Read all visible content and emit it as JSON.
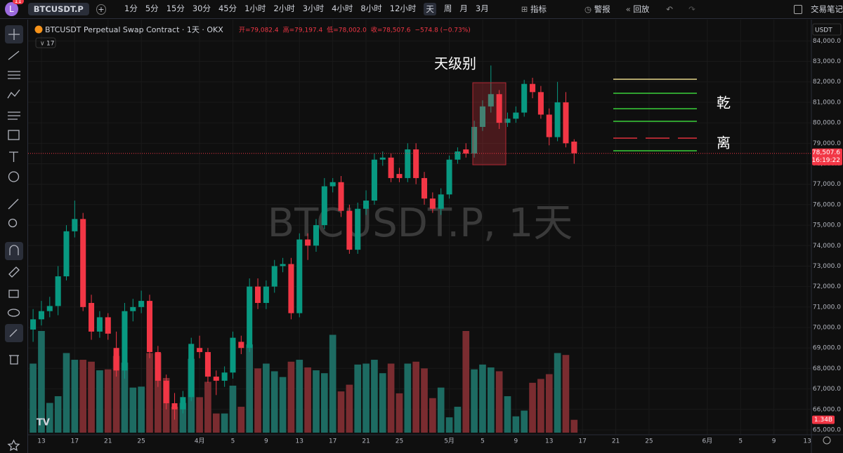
{
  "toolbar": {
    "avatar": "L",
    "badge": "11",
    "symbol": "BTCUSDT.P",
    "intervals": [
      "1分",
      "5分",
      "15分",
      "30分",
      "45分",
      "1小时",
      "2小时",
      "3小时",
      "4小时",
      "8小时",
      "12小时",
      "天",
      "周",
      "月",
      "3月"
    ],
    "indicators": "指标",
    "alert": "警报",
    "replay": "回放",
    "notes": "交易笔记"
  },
  "chart_data": {
    "type": "candlestick",
    "title": "BTCUSDT Perpetual Swap Contract · 1天 · OKX",
    "legend_values": [
      "开=79,082.4",
      "高=79,197.4",
      "低=78,002.0",
      "收=78,507.6",
      "−574.8 (−0.73%)"
    ],
    "indicator_count": "17",
    "watermark": "BTCUSDT.P, 1天",
    "annotation": "天级别",
    "labels": [
      "乾",
      "离"
    ],
    "currency": "USDT",
    "colors": {
      "up": "#089981",
      "down": "#f23645",
      "volume_up": "#1d6b62",
      "volume_down": "#7a2c30"
    },
    "open": [
      69900,
      70400,
      70800,
      71050,
      72500,
      74700,
      75300,
      71200,
      69800,
      70500,
      69000,
      67900,
      70800,
      71000,
      71300,
      68800,
      67400,
      66300,
      66000,
      66600,
      69000,
      68800,
      67600,
      67400,
      67800,
      69300,
      69000,
      72000,
      71200,
      72000,
      73000,
      73100,
      70700,
      74300,
      74000,
      75000,
      76900,
      77100,
      75700,
      73800,
      75800,
      76200,
      78200,
      78300,
      77500,
      77300,
      78700,
      77300,
      76300,
      75800,
      76500,
      78200,
      78700,
      78500,
      79800,
      80800,
      81400,
      80000,
      80200,
      80500,
      81900,
      81500,
      80400,
      79300,
      81000,
      79082.4
    ],
    "high": [
      70900,
      71300,
      71500,
      73000,
      75000,
      76200,
      75600,
      71600,
      70800,
      70700,
      69800,
      71200,
      71400,
      71800,
      71600,
      69100,
      67700,
      66800,
      66900,
      69500,
      69600,
      69000,
      67900,
      68100,
      69800,
      69600,
      72400,
      72400,
      72300,
      73300,
      73400,
      73400,
      74600,
      74600,
      75300,
      77300,
      77300,
      77400,
      76000,
      76100,
      76700,
      78500,
      78600,
      78500,
      77800,
      79000,
      79000,
      77600,
      76600,
      76800,
      78400,
      78800,
      79000,
      80100,
      81100,
      82800,
      81600,
      80500,
      80800,
      82100,
      82200,
      81800,
      80700,
      82000,
      81500,
      79197.4
    ],
    "low": [
      69300,
      70100,
      70500,
      70600,
      72300,
      74400,
      70800,
      69400,
      69500,
      69400,
      67600,
      67500,
      70300,
      70700,
      68500,
      67100,
      66000,
      65500,
      65800,
      66400,
      68500,
      67300,
      66700,
      67100,
      67500,
      68700,
      68800,
      70900,
      70900,
      71700,
      72700,
      70400,
      70500,
      73300,
      73700,
      74800,
      76600,
      75400,
      73600,
      73600,
      75500,
      76000,
      77900,
      77100,
      77100,
      77100,
      77000,
      76000,
      75600,
      75500,
      76300,
      78000,
      78300,
      78300,
      79600,
      80500,
      79700,
      79800,
      80000,
      80300,
      81200,
      80200,
      78900,
      79100,
      78800,
      78002.0
    ],
    "close": [
      70400,
      70800,
      71050,
      72500,
      74700,
      75300,
      71000,
      69800,
      70500,
      69700,
      67900,
      70800,
      71000,
      71300,
      68800,
      67400,
      66300,
      66000,
      66600,
      69200,
      68800,
      67600,
      67400,
      67800,
      69500,
      69000,
      72000,
      71200,
      72000,
      73000,
      73100,
      70700,
      74300,
      74000,
      75000,
      76900,
      77100,
      75700,
      73800,
      75800,
      76200,
      78200,
      78300,
      77300,
      77300,
      78700,
      77300,
      76300,
      75800,
      76500,
      78200,
      78600,
      78500,
      79800,
      80800,
      81400,
      80000,
      80200,
      80500,
      81900,
      81500,
      80400,
      79300,
      81000,
      79000,
      78507.6
    ],
    "volume": {
      "values": [
        7.2,
        10.6,
        3.1,
        3.8,
        8.3,
        7.6,
        7.6,
        7.4,
        6.5,
        6.6,
        8.0,
        7.3,
        4.7,
        4.8,
        8.3,
        8.3,
        5.7,
        2.7,
        3.1,
        7.7,
        3.7,
        5.3,
        2.0,
        2.0,
        4.9,
        2.7,
        9.2,
        6.7,
        7.2,
        6.4,
        5.8,
        7.4,
        7.6,
        6.8,
        6.5,
        6.2,
        10.2,
        4.3,
        5.0,
        7.1,
        7.2,
        7.6,
        6.2,
        7.2,
        4.1,
        7.2,
        7.4,
        6.7,
        3.6,
        4.7,
        1.6,
        2.7,
        10.6,
        6.6,
        7.1,
        6.8,
        6.4,
        3.8,
        1.7,
        2.3,
        5.2,
        5.6,
        6.1,
        8.3,
        8.1,
        1.34
      ],
      "last_label": "1.34B"
    },
    "last_price_label": "78,507.6",
    "countdown": "16:19:22",
    "ylim": [
      64760,
      85040
    ],
    "yticks": [
      {
        "value": 84000,
        "label": "84,000.0"
      },
      {
        "value": 83000,
        "label": "83,000.0"
      },
      {
        "value": 82000,
        "label": "82,000.0"
      },
      {
        "value": 81000,
        "label": "81,000.0"
      },
      {
        "value": 80000,
        "label": "80,000.0"
      },
      {
        "value": 79000,
        "label": "79,000.0"
      },
      {
        "value": 78000,
        "label": "78,000.0"
      },
      {
        "value": 77000,
        "label": "77,000.0"
      },
      {
        "value": 76000,
        "label": "76,000.0"
      },
      {
        "value": 75000,
        "label": "75,000.0"
      },
      {
        "value": 74000,
        "label": "74,000.0"
      },
      {
        "value": 73000,
        "label": "73,000.0"
      },
      {
        "value": 72000,
        "label": "72,000.0"
      },
      {
        "value": 71000,
        "label": "71,000.0"
      },
      {
        "value": 70000,
        "label": "70,000.0"
      },
      {
        "value": 69000,
        "label": "69,000.0"
      },
      {
        "value": 68000,
        "label": "68,000.0"
      },
      {
        "value": 67000,
        "label": "67,000.0"
      },
      {
        "value": 66000,
        "label": "66,000.0"
      },
      {
        "value": 65000,
        "label": "65,000.0"
      }
    ],
    "xlim": [
      -0.6,
      93.5
    ],
    "xticks": [
      {
        "value": 1,
        "label": "13"
      },
      {
        "value": 5,
        "label": "17"
      },
      {
        "value": 9,
        "label": "21"
      },
      {
        "value": 13,
        "label": "25"
      },
      {
        "value": 20,
        "label": "4月"
      },
      {
        "value": 24,
        "label": "5"
      },
      {
        "value": 28,
        "label": "9"
      },
      {
        "value": 32,
        "label": "13"
      },
      {
        "value": 36,
        "label": "17"
      },
      {
        "value": 40,
        "label": "21"
      },
      {
        "value": 44,
        "label": "25"
      },
      {
        "value": 50,
        "label": "5月"
      },
      {
        "value": 54,
        "label": "5"
      },
      {
        "value": 58,
        "label": "9"
      },
      {
        "value": 62,
        "label": "13"
      },
      {
        "value": 66,
        "label": "17"
      },
      {
        "value": 70,
        "label": "21"
      },
      {
        "value": 74,
        "label": "25"
      },
      {
        "value": 81,
        "label": "6月"
      },
      {
        "value": 85,
        "label": "5"
      },
      {
        "value": 89,
        "label": "9"
      },
      {
        "value": 93,
        "label": "13"
      }
    ],
    "grid": true
  }
}
